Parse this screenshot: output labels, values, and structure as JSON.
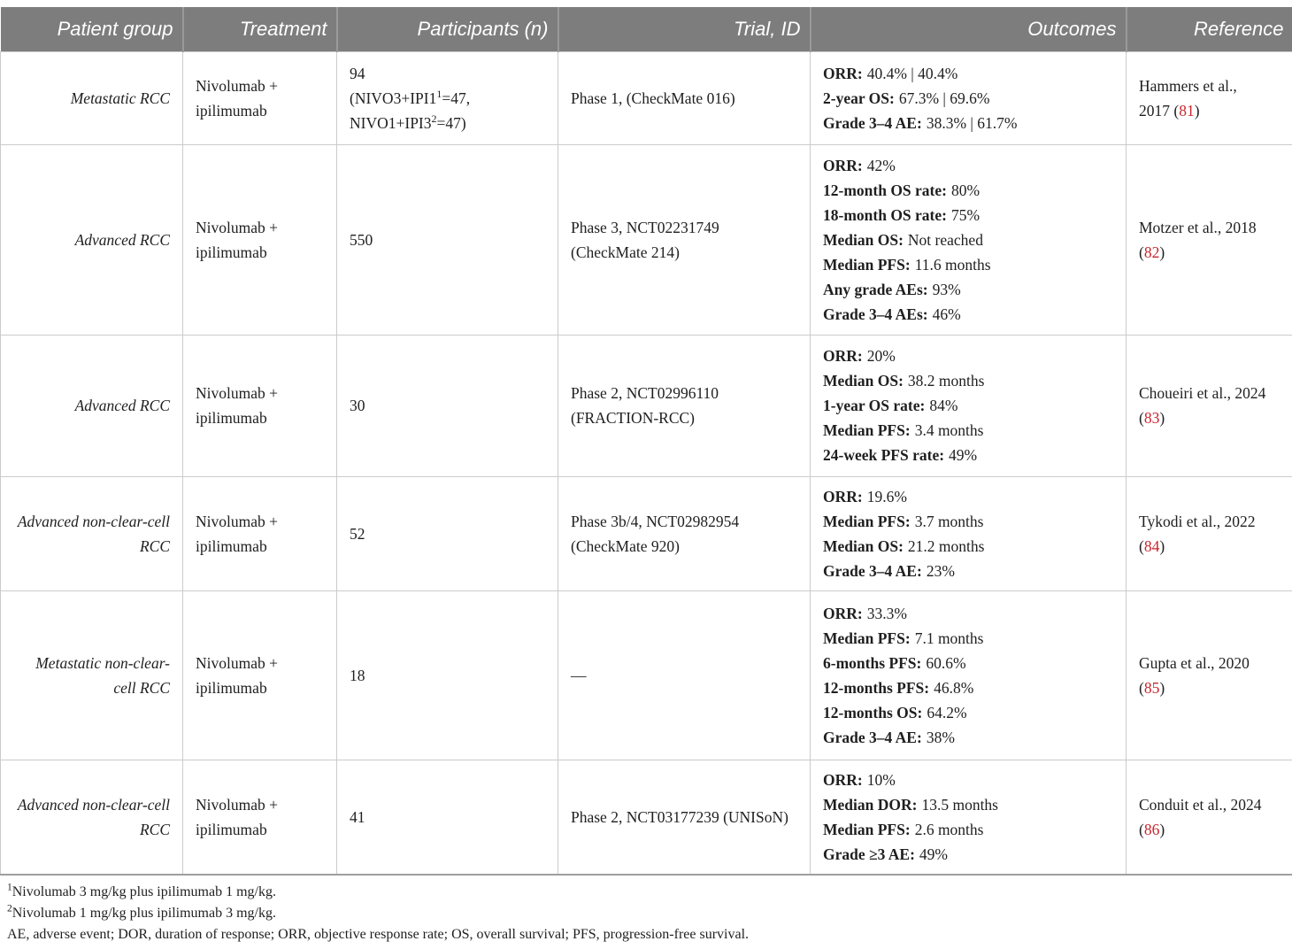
{
  "colors": {
    "header_bg": "#7d7d7d",
    "header_text": "#ffffff",
    "body_border": "#cbcbcb",
    "citation_red": "#c9252c"
  },
  "table": {
    "headers": {
      "patient_group": "Patient group",
      "treatment": "Treatment",
      "participants": "Participants (n)",
      "trial": "Trial, ID",
      "outcomes": "Outcomes",
      "reference": "Reference"
    },
    "rows": [
      {
        "patient_group": "Metastatic RCC",
        "treatment": "Nivolumab + ipilimumab",
        "participants": "94",
        "participants_detail": {
          "line2_pre": "(NIVO3+IPI1",
          "line2_sup": "1",
          "line2_post": "=47,",
          "line3_pre": "NIVO1+IPI3",
          "line3_sup": "2",
          "line3_post": "=47)"
        },
        "trial": "Phase 1, (CheckMate 016)",
        "outcomes": [
          {
            "label": "ORR:",
            "value": "40.4% | 40.4%"
          },
          {
            "label": "2-year OS:",
            "value": "67.3% | 69.6%"
          },
          {
            "label": "Grade 3–4 AE:",
            "value": "38.3% | 61.7%"
          }
        ],
        "reference": {
          "pre": "Hammers et al., 2017 (",
          "citation": "81",
          "post": ")"
        }
      },
      {
        "patient_group": "Advanced RCC",
        "treatment": "Nivolumab + ipilimumab",
        "participants": "550",
        "trial": "Phase 3, NCT02231749 (CheckMate 214)",
        "outcomes": [
          {
            "label": "ORR:",
            "value": "42%"
          },
          {
            "label": "12-month OS rate:",
            "value": "80%"
          },
          {
            "label": "18-month OS rate:",
            "value": "75%"
          },
          {
            "label": "Median OS:",
            "value": "Not reached"
          },
          {
            "label": "Median PFS:",
            "value": "11.6 months"
          },
          {
            "label": "Any grade AEs:",
            "value": "93%"
          },
          {
            "label": "Grade 3–4 AEs:",
            "value": "46%"
          }
        ],
        "reference": {
          "pre": "Motzer et al., 2018 (",
          "citation": "82",
          "post": ")"
        }
      },
      {
        "patient_group": "Advanced RCC",
        "treatment": "Nivolumab + ipilimumab",
        "participants": "30",
        "trial": "Phase 2, NCT02996110 (FRACTION-RCC)",
        "outcomes": [
          {
            "label": "ORR:",
            "value": "20%"
          },
          {
            "label": "Median OS:",
            "value": "38.2 months"
          },
          {
            "label": "1-year OS rate:",
            "value": "84%"
          },
          {
            "label": "Median PFS:",
            "value": "3.4 months"
          },
          {
            "label": "24-week PFS rate:",
            "value": "49%"
          }
        ],
        "reference": {
          "pre": "Choueiri et al., 2024 (",
          "citation": "83",
          "post": ")"
        }
      },
      {
        "patient_group": "Advanced non-clear-cell RCC",
        "treatment": "Nivolumab + ipilimumab",
        "participants": "52",
        "trial": "Phase 3b/4, NCT02982954 (CheckMate 920)",
        "outcomes": [
          {
            "label": "ORR:",
            "value": "19.6%"
          },
          {
            "label": "Median PFS:",
            "value": "3.7 months"
          },
          {
            "label": "Median OS:",
            "value": "21.2 months"
          },
          {
            "label": "Grade 3–4 AE:",
            "value": "23%"
          }
        ],
        "reference": {
          "pre": "Tykodi et al., 2022 (",
          "citation": "84",
          "post": ")"
        }
      },
      {
        "patient_group": "Metastatic non-clear-cell RCC",
        "treatment": "Nivolumab + ipilimumab",
        "participants": "18",
        "trial": "—",
        "outcomes": [
          {
            "label": "ORR:",
            "value": "33.3%"
          },
          {
            "label": "Median PFS:",
            "value": "7.1 months"
          },
          {
            "label": "6-months PFS:",
            "value": "60.6%"
          },
          {
            "label": "12-months PFS:",
            "value": "46.8%"
          },
          {
            "label": "12-months OS:",
            "value": "64.2%"
          },
          {
            "label": "Grade 3–4 AE:",
            "value": "38%"
          }
        ],
        "reference": {
          "pre": "Gupta et al., 2020 (",
          "citation": "85",
          "post": ")"
        }
      },
      {
        "patient_group": "Advanced non-clear-cell RCC",
        "treatment": "Nivolumab + ipilimumab",
        "participants": "41",
        "trial": "Phase 2, NCT03177239 (UNISoN)",
        "outcomes": [
          {
            "label": "ORR:",
            "value": "10%"
          },
          {
            "label": "Median DOR:",
            "value": "13.5 months"
          },
          {
            "label": "Median PFS:",
            "value": "2.6 months"
          },
          {
            "label": "Grade ≥3 AE:",
            "value": "49%"
          }
        ],
        "reference": {
          "pre": "Conduit et al., 2024 (",
          "citation": "86",
          "post": ")"
        }
      }
    ]
  },
  "footnotes": [
    {
      "sup": "1",
      "text": "Nivolumab 3 mg/kg plus ipilimumab 1 mg/kg."
    },
    {
      "sup": "2",
      "text": "Nivolumab 1 mg/kg plus ipilimumab 3 mg/kg."
    },
    {
      "sup": "",
      "text": "AE, adverse event; DOR, duration of response; ORR, objective response rate; OS, overall survival; PFS, progression-free survival."
    }
  ]
}
